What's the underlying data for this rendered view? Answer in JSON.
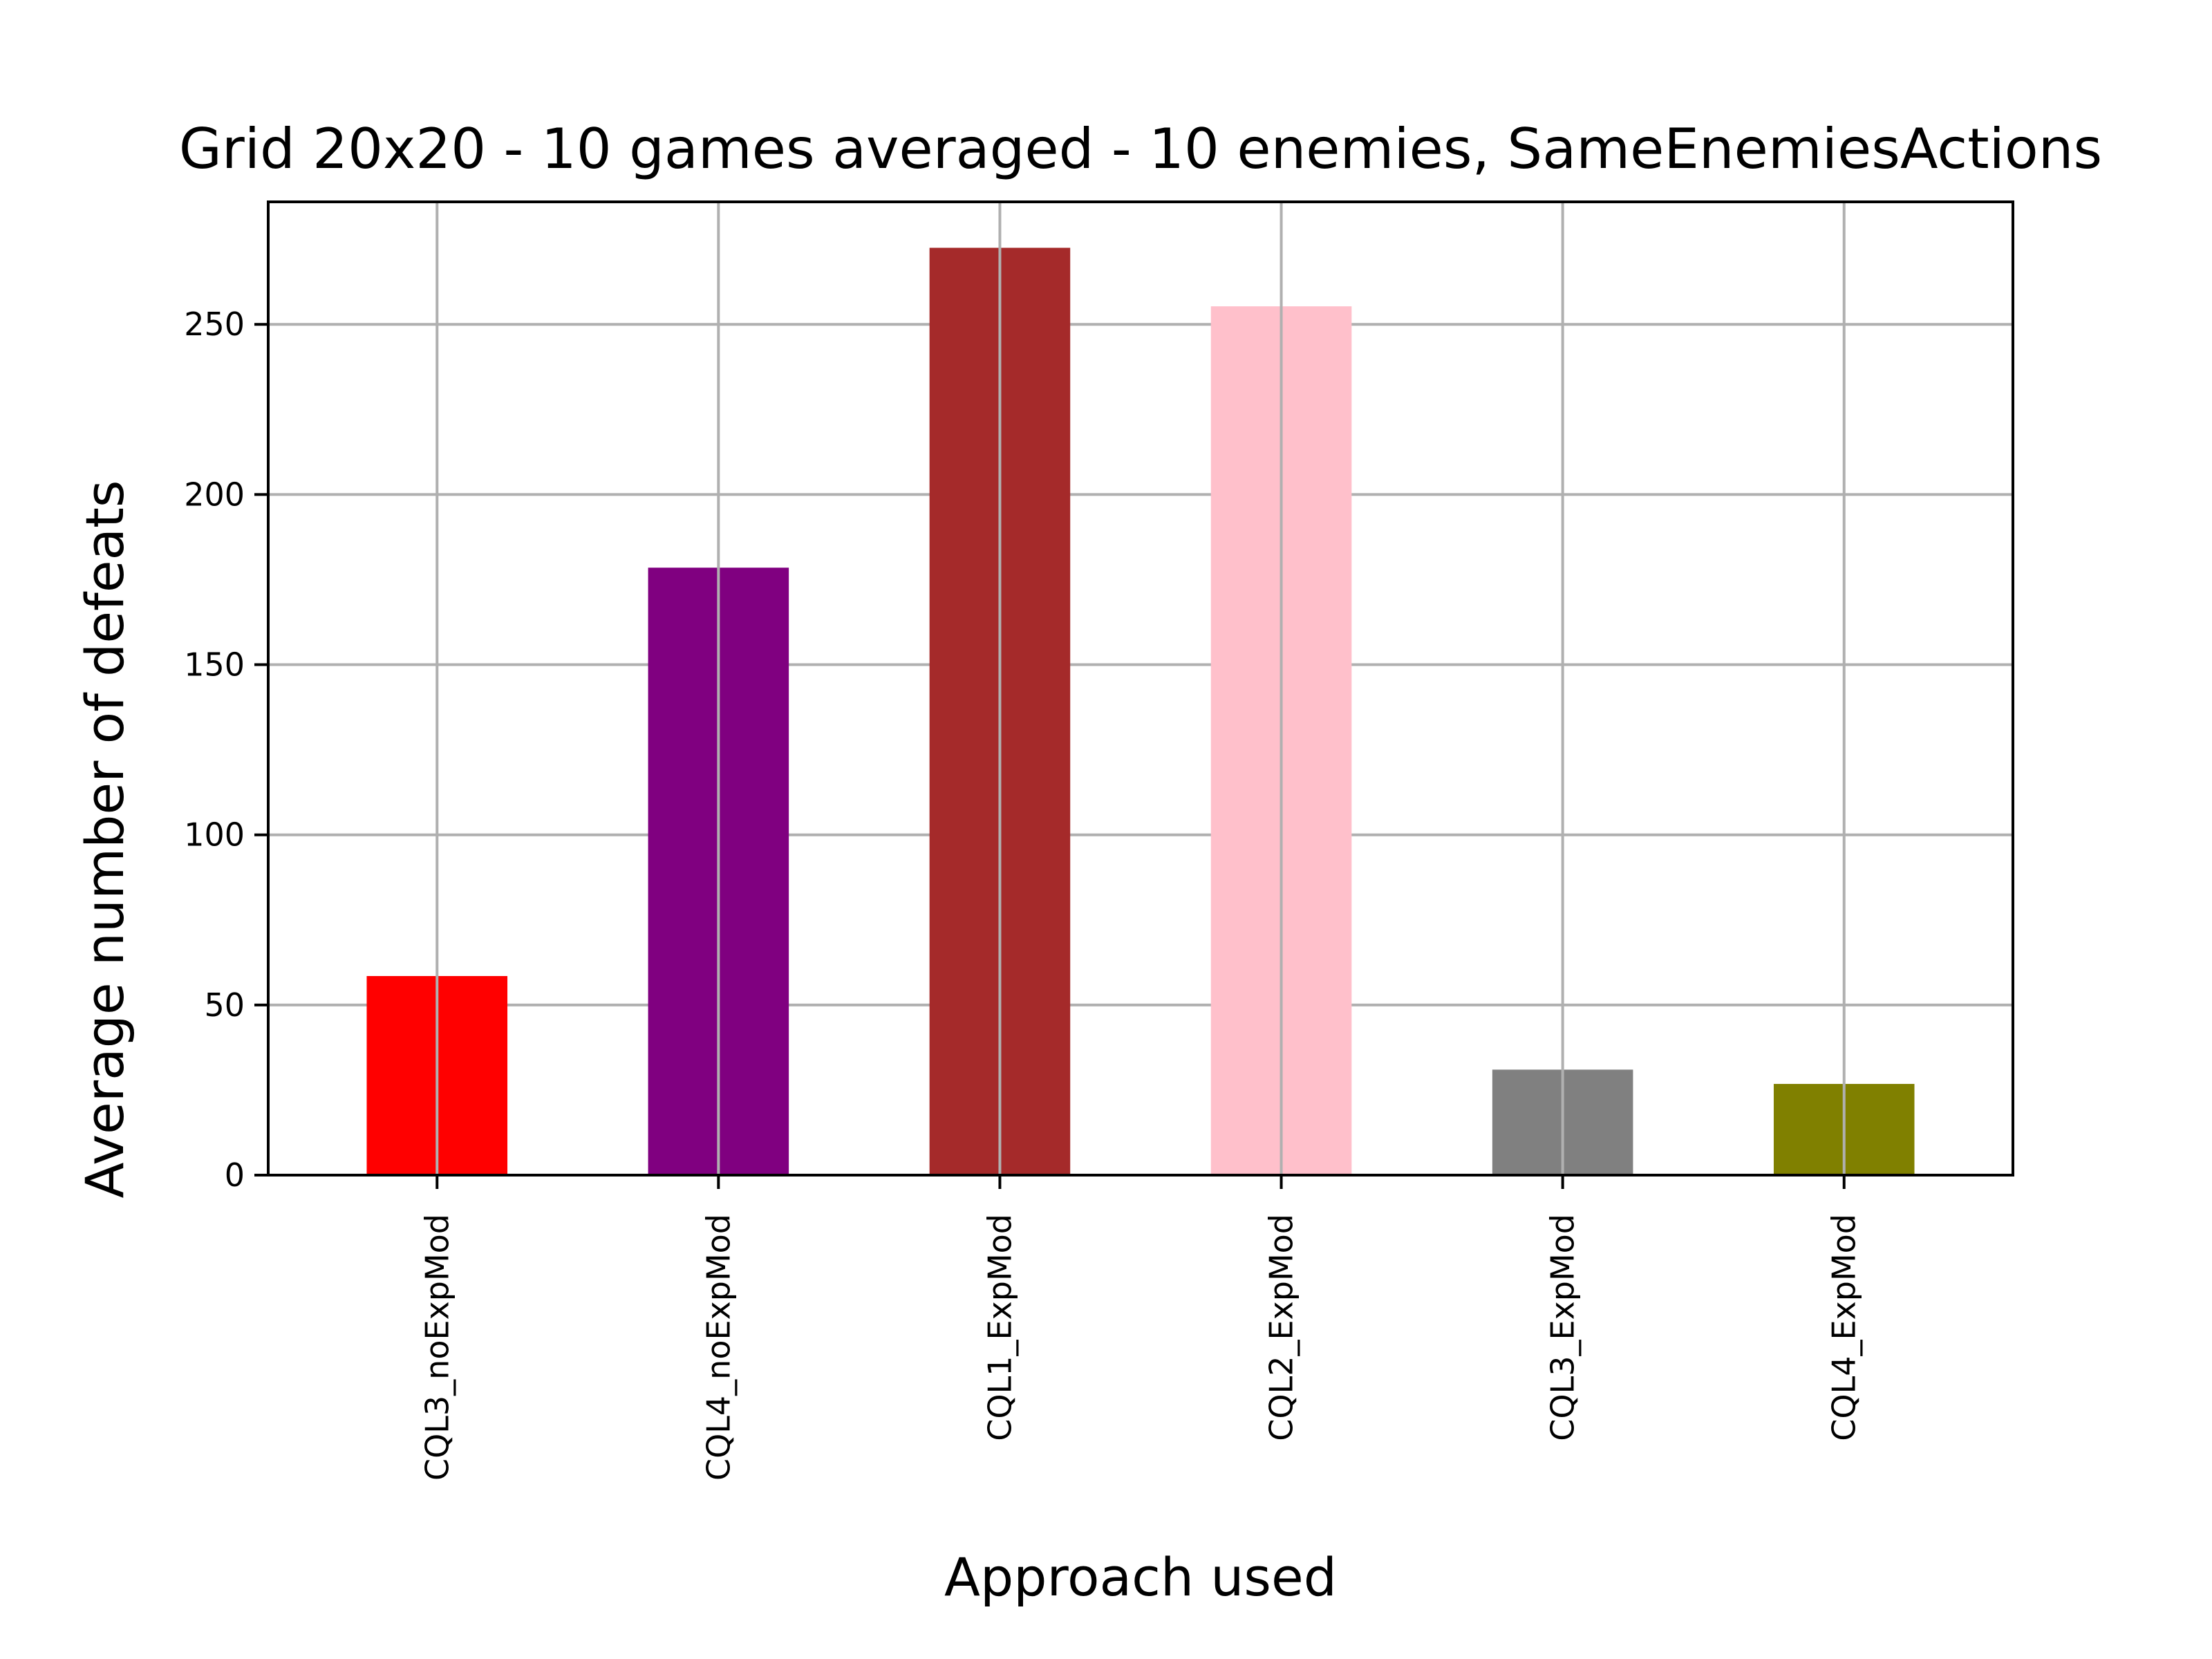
{
  "chart_data": {
    "type": "bar",
    "title": "Grid 20x20 - 10 games averaged - 10 enemies, SameEnemiesActions",
    "xlabel": "Approach used",
    "ylabel": "Average number of defeats",
    "categories": [
      "CQL3_noExpMod",
      "CQL4_noExpMod",
      "CQL1_ExpMod",
      "CQL2_ExpMod",
      "CQL3_ExpMod",
      "CQL4_ExpMod"
    ],
    "values": [
      58.5,
      178.5,
      272.5,
      255.3,
      31.0,
      26.8
    ],
    "colors": [
      "#ff0000",
      "#800080",
      "#a52a2a",
      "#ffc0cb",
      "#808080",
      "#808000"
    ],
    "ylim": [
      0,
      286
    ],
    "yticks": [
      0,
      50,
      100,
      150,
      200,
      250
    ],
    "grid": true,
    "legend": "none"
  }
}
